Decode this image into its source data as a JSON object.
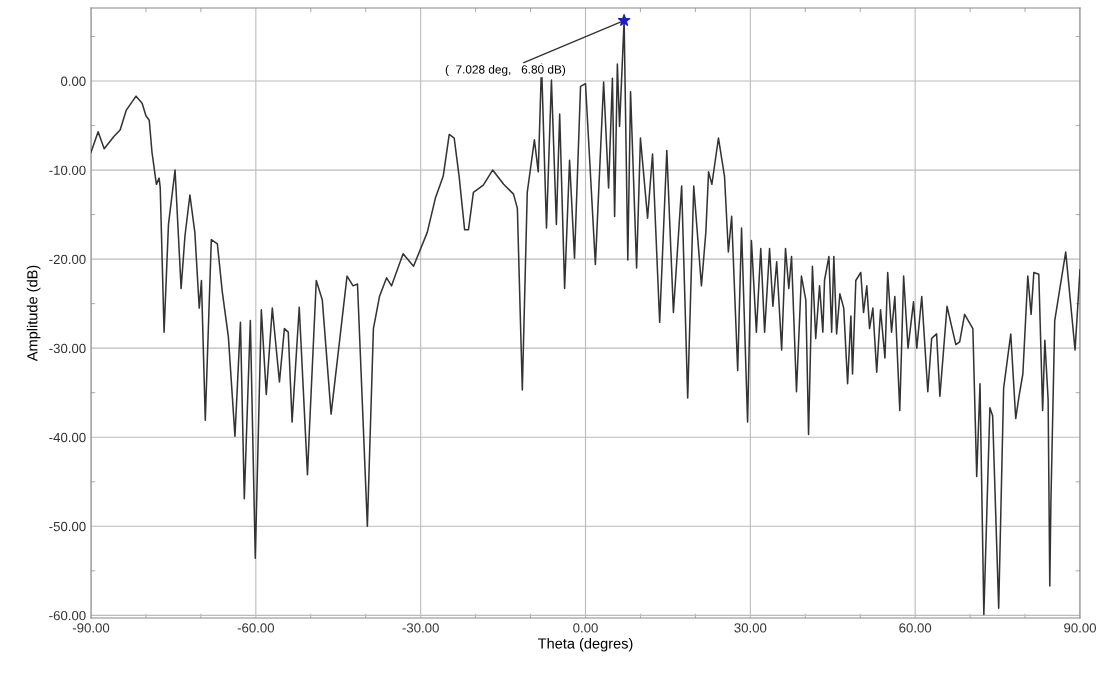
{
  "chart_data": {
    "type": "line",
    "xlabel": "Theta (degres)",
    "ylabel": "Amplitude (dB)",
    "xlim": [
      -90,
      90
    ],
    "ylim": [
      -60.3,
      8.2
    ],
    "xticks": [
      {
        "value": -90,
        "label": "-90.00"
      },
      {
        "value": -60,
        "label": "-60.00"
      },
      {
        "value": -30,
        "label": "-30.00"
      },
      {
        "value": 0,
        "label": "0.00"
      },
      {
        "value": 30,
        "label": "30.00"
      },
      {
        "value": 60,
        "label": "60.00"
      },
      {
        "value": 90,
        "label": "90.00"
      }
    ],
    "yticks": [
      {
        "value": 0,
        "label": "0.00"
      },
      {
        "value": -10,
        "label": "-10.00"
      },
      {
        "value": -20,
        "label": "-20.00"
      },
      {
        "value": -30,
        "label": "-30.00"
      },
      {
        "value": -40,
        "label": "-40.00"
      },
      {
        "value": -50,
        "label": "-50.00"
      },
      {
        "value": -60,
        "label": "-60.00"
      }
    ],
    "grid": true,
    "legend": false,
    "annotations": [
      {
        "text": "(  7.028 deg,   6.80 dB)",
        "x": 7.028,
        "y": 6.8
      }
    ],
    "series": [
      {
        "color": "#333333",
        "marker": "none",
        "line_style": "solid",
        "x": [
          -90,
          -88.7,
          -87.6,
          -85.8,
          -84.7,
          -83.6,
          -81.8,
          -80.7,
          -80.0,
          -79.4,
          -78.9,
          -78.1,
          -77.6,
          -77.4,
          -76.7,
          -75.9,
          -74.7,
          -73.6,
          -72.9,
          -72.0,
          -71.1,
          -70.3,
          -69.9,
          -69.2,
          -68.1,
          -67.0,
          -66.1,
          -65.0,
          -63.8,
          -62.8,
          -62.1,
          -61.0,
          -60.1,
          -59.0,
          -58.1,
          -57.0,
          -55.7,
          -54.8,
          -54.1,
          -53.4,
          -52.1,
          -50.6,
          -50.3,
          -49.0,
          -47.9,
          -46.3,
          -43.4,
          -42.3,
          -41.5,
          -39.7,
          -38.6,
          -37.5,
          -36.2,
          -35.3,
          -33.2,
          -31.3,
          -28.8,
          -27.3,
          -25.9,
          -24.8,
          -23.9,
          -23.0,
          -22.0,
          -21.3,
          -20.4,
          -18.6,
          -16.9,
          -14.9,
          -13.1,
          -12.4,
          -11.5,
          -10.6,
          -9.3,
          -8.6,
          -8.0,
          -7.1,
          -6.2,
          -5.3,
          -4.7,
          -3.8,
          -2.9,
          -2.0,
          -0.9,
          0.0,
          1.8,
          3.3,
          4.2,
          4.9,
          5.3,
          5.8,
          6.2,
          7.028,
          7.7,
          8.2,
          9.3,
          10.0,
          11.3,
          12.2,
          13.5,
          14.8,
          16.0,
          17.5,
          18.6,
          19.7,
          21.1,
          21.9,
          22.4,
          23.0,
          24.2,
          25.3,
          26.0,
          26.6,
          27.7,
          28.4,
          29.5,
          30.2,
          31.1,
          31.9,
          32.6,
          33.5,
          34.1,
          34.8,
          35.7,
          36.4,
          37.0,
          37.5,
          38.4,
          39.3,
          40.1,
          40.6,
          41.3,
          41.9,
          42.6,
          43.2,
          43.5,
          44.3,
          44.8,
          45.2,
          45.7,
          46.3,
          47.0,
          47.7,
          48.3,
          48.6,
          49.2,
          50.1,
          50.6,
          51.2,
          51.7,
          52.3,
          53.0,
          53.7,
          54.5,
          55.0,
          55.7,
          56.3,
          57.2,
          57.9,
          58.7,
          59.7,
          60.3,
          61.2,
          62.3,
          63.0,
          63.9,
          64.5,
          65.8,
          67.4,
          68.1,
          69.0,
          70.5,
          71.2,
          71.8,
          72.5,
          73.6,
          74.1,
          75.2,
          76.1,
          77.4,
          78.3,
          78.9,
          79.6,
          80.5,
          81.1,
          81.6,
          82.5,
          83.2,
          83.6,
          84.2,
          84.5,
          84.7,
          85.4,
          87.4,
          89.1,
          90
        ],
        "values": [
          -8.0,
          -5.7,
          -7.6,
          -6.2,
          -5.5,
          -3.3,
          -1.7,
          -2.5,
          -3.9,
          -4.4,
          -8.0,
          -11.6,
          -10.9,
          -12.0,
          -28.2,
          -16.1,
          -10.0,
          -23.3,
          -17.4,
          -12.8,
          -17.0,
          -25.5,
          -22.4,
          -38.1,
          -17.8,
          -18.3,
          -23.7,
          -28.7,
          -39.9,
          -27.1,
          -46.9,
          -26.9,
          -53.6,
          -25.7,
          -35.2,
          -25.5,
          -33.8,
          -27.8,
          -28.2,
          -38.3,
          -25.4,
          -44.2,
          -39.9,
          -22.4,
          -24.6,
          -37.4,
          -21.9,
          -23.0,
          -22.8,
          -50.0,
          -27.8,
          -24.2,
          -22.1,
          -23.0,
          -19.4,
          -20.8,
          -17.0,
          -13.1,
          -10.7,
          -6.0,
          -6.4,
          -10.7,
          -16.7,
          -16.7,
          -12.5,
          -11.7,
          -10.0,
          -11.6,
          -12.7,
          -14.3,
          -34.7,
          -12.5,
          -6.6,
          -10.2,
          1.9,
          -16.5,
          0.1,
          -16.1,
          -3.7,
          -23.3,
          -8.9,
          -19.9,
          -0.6,
          -0.3,
          -20.6,
          -0.1,
          -12.0,
          0.3,
          -15.2,
          1.9,
          -5.1,
          6.8,
          -20.1,
          -1.2,
          -21.0,
          -6.4,
          -15.4,
          -8.2,
          -27.1,
          -7.8,
          -26.0,
          -11.8,
          -35.6,
          -11.8,
          -23.0,
          -17.0,
          -10.2,
          -11.6,
          -6.4,
          -10.7,
          -19.2,
          -15.2,
          -32.5,
          -16.5,
          -38.3,
          -17.9,
          -28.2,
          -18.8,
          -28.2,
          -18.8,
          -25.3,
          -20.3,
          -30.2,
          -18.8,
          -23.3,
          -19.7,
          -34.9,
          -21.9,
          -24.6,
          -39.7,
          -20.8,
          -28.9,
          -23.0,
          -28.2,
          -22.4,
          -19.7,
          -28.2,
          -19.7,
          -28.4,
          -23.9,
          -25.5,
          -34.0,
          -26.4,
          -32.9,
          -22.4,
          -21.5,
          -26.0,
          -23.0,
          -27.8,
          -25.5,
          -32.7,
          -25.7,
          -31.1,
          -21.5,
          -28.2,
          -24.2,
          -37.0,
          -21.9,
          -30.0,
          -24.8,
          -30.0,
          -24.2,
          -34.9,
          -28.9,
          -28.4,
          -35.4,
          -25.3,
          -29.6,
          -29.3,
          -26.2,
          -27.8,
          -44.4,
          -34.0,
          -59.9,
          -36.7,
          -37.6,
          -59.2,
          -34.5,
          -28.4,
          -37.9,
          -35.4,
          -32.9,
          -21.9,
          -26.2,
          -21.5,
          -21.7,
          -37.0,
          -29.1,
          -35.8,
          -56.7,
          -47.5,
          -26.9,
          -19.2,
          -30.2,
          -21.2
        ]
      },
      {
        "type": "scatter",
        "color": "#2020c0",
        "marker": "star",
        "x": [
          7.028
        ],
        "values": [
          6.8
        ]
      }
    ]
  }
}
